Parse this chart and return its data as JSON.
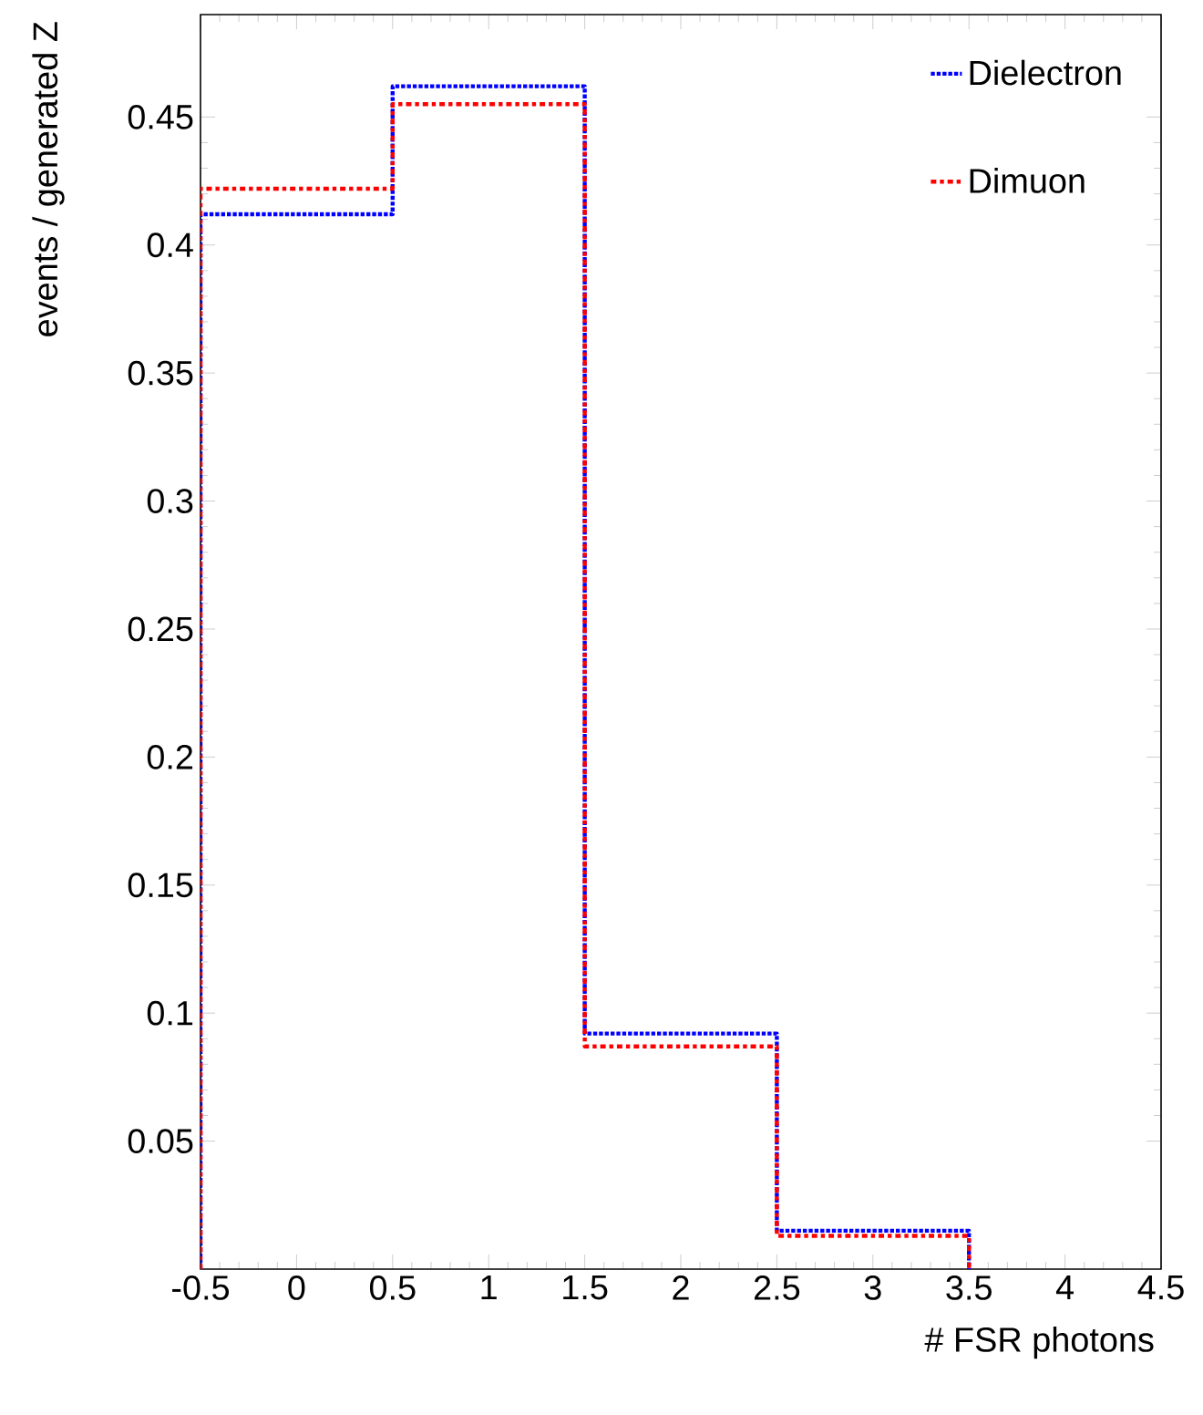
{
  "chart_data": {
    "type": "histogram",
    "xlabel": "# FSR photons",
    "ylabel": "events / generated Z",
    "bins": [
      -0.5,
      0.5,
      1.5,
      2.5,
      3.5
    ],
    "series": [
      {
        "name": "Dielectron",
        "color": "#0000ff",
        "values": [
          0.412,
          0.462,
          0.092,
          0.015
        ],
        "line_style": "dotted"
      },
      {
        "name": "Dimuon",
        "color": "#ff0000",
        "values": [
          0.422,
          0.455,
          0.087,
          0.013
        ],
        "line_style": "dashed"
      }
    ],
    "xlim": [
      -0.5,
      4.5
    ],
    "ylim": [
      0,
      0.49
    ],
    "xticks": [
      -0.5,
      0,
      0.5,
      1,
      1.5,
      2,
      2.5,
      3,
      3.5,
      4,
      4.5
    ],
    "yticks": [
      0.05,
      0.1,
      0.15,
      0.2,
      0.25,
      0.3,
      0.35,
      0.4,
      0.45
    ],
    "legend": "top right",
    "grid": false
  }
}
